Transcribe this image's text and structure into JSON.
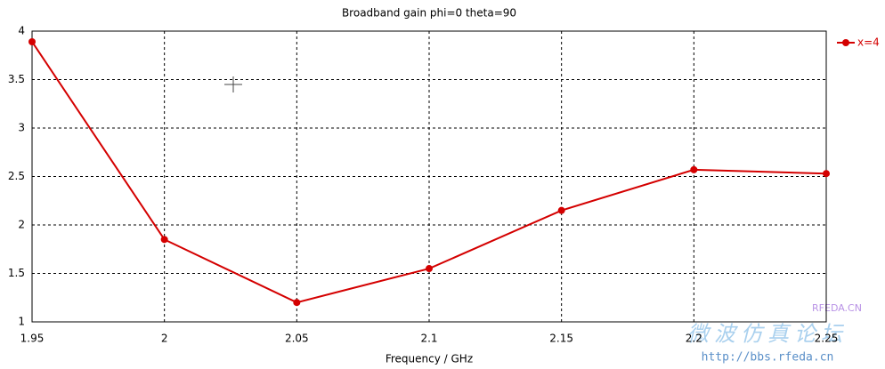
{
  "chart_data": {
    "type": "line",
    "title": "Broadband gain phi=0 theta=90",
    "x_label": "Frequency / GHz",
    "x": [
      1.95,
      2.0,
      2.05,
      2.1,
      2.15,
      2.2,
      2.25
    ],
    "series": [
      {
        "name": "x=4",
        "color": "#d40000",
        "values": [
          3.89,
          1.85,
          1.2,
          1.55,
          2.15,
          2.57,
          2.53
        ]
      }
    ],
    "xlim": [
      1.95,
      2.25
    ],
    "xticks": [
      1.95,
      2,
      2.05,
      2.1,
      2.15,
      2.2,
      2.25
    ],
    "ylim": [
      1,
      4
    ],
    "yticks": [
      1,
      1.5,
      2,
      2.5,
      3,
      3.5,
      4
    ],
    "grid": true,
    "legend": "right"
  },
  "watermark": [
    "RFEDA.CN",
    "微波仿真论坛",
    "http://bbs.rfeda.cn"
  ]
}
